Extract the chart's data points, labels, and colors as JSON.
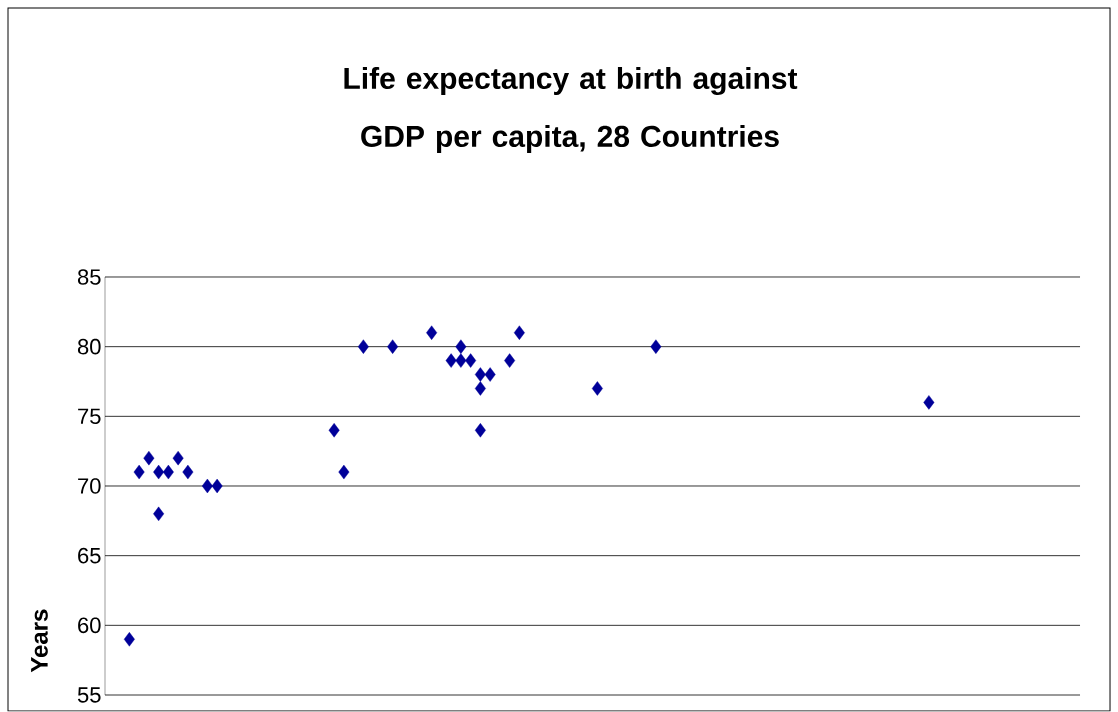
{
  "chart_data": {
    "type": "scatter",
    "title": "Life expectancy at birth against GDP per capita, 28 Countries",
    "ylabel": "Years",
    "categories": [
      null,
      null,
      null,
      null,
      null,
      null,
      null,
      null,
      null,
      null,
      null,
      null,
      null,
      null,
      null,
      null,
      null,
      null,
      null,
      null,
      null,
      null,
      null,
      null,
      null,
      null,
      null,
      null,
      null,
      null,
      null,
      null,
      null,
      null,
      null,
      null,
      null,
      null,
      null,
      null,
      null,
      null,
      null,
      null,
      null,
      null,
      null,
      null,
      null,
      null,
      null,
      null,
      null,
      null,
      null,
      null,
      null,
      null,
      null,
      null,
      null,
      null,
      null,
      null,
      null,
      null,
      null,
      null,
      null,
      null,
      null,
      null,
      null,
      null,
      null,
      null,
      null,
      null,
      null,
      null,
      null,
      null,
      null,
      null,
      null,
      null,
      null,
      null,
      null,
      null,
      null,
      null,
      null,
      null,
      null,
      null,
      null,
      null,
      null,
      null
    ],
    "series": [
      {
        "color": "#000099",
        "values": [
          null,
          null,
          59,
          71,
          72,
          71,
          71,
          72,
          71,
          null,
          70,
          70,
          null,
          null,
          null,
          null,
          null,
          null,
          null,
          null,
          null,
          null,
          null,
          74,
          71,
          null,
          80,
          null,
          null,
          80,
          null,
          null,
          null,
          81,
          null,
          79,
          80,
          79,
          78,
          78,
          null,
          79,
          81,
          null,
          null,
          null,
          null,
          null,
          null,
          null,
          77,
          null,
          null,
          null,
          null,
          null,
          80,
          null,
          null,
          null,
          null,
          null,
          null,
          null,
          null,
          null,
          null,
          null,
          null,
          null,
          null,
          null,
          null,
          null,
          null,
          null,
          null,
          null,
          null,
          null,
          null,
          null,
          null,
          null,
          76,
          null,
          null,
          null,
          null,
          null,
          null,
          null,
          null,
          null,
          null,
          null,
          null,
          null,
          null,
          null
        ]
      },
      {
        "color": "#000099",
        "values": [
          null,
          null,
          null,
          null,
          null,
          68,
          null,
          null,
          null,
          null,
          null,
          null,
          null,
          null,
          null,
          null,
          null,
          null,
          null,
          null,
          null,
          null,
          null,
          null,
          null,
          null,
          null,
          null,
          null,
          null,
          null,
          null,
          null,
          null,
          null,
          null,
          79,
          null,
          74,
          null,
          null,
          null,
          null,
          null,
          null,
          null,
          null,
          null,
          null,
          null,
          null,
          null,
          null,
          null,
          null,
          null,
          null,
          null,
          null,
          null,
          null,
          null,
          null,
          null,
          null,
          null,
          null,
          null,
          null,
          null,
          null,
          null,
          null,
          null,
          null,
          null,
          null,
          null,
          null,
          null,
          null,
          null,
          null,
          null,
          null,
          null,
          null,
          null,
          null,
          null,
          null,
          null,
          null,
          null,
          null,
          null,
          null,
          null,
          null,
          null
        ]
      },
      {
        "color": "#000099",
        "values": [
          null,
          null,
          null,
          null,
          null,
          null,
          null,
          null,
          null,
          null,
          null,
          null,
          null,
          null,
          null,
          null,
          null,
          null,
          null,
          null,
          null,
          null,
          null,
          null,
          null,
          null,
          null,
          null,
          null,
          null,
          null,
          null,
          null,
          null,
          null,
          null,
          null,
          null,
          77,
          null,
          null,
          null,
          null,
          null,
          null,
          null,
          null,
          null,
          null,
          null,
          null,
          null,
          null,
          null,
          null,
          null,
          null,
          null,
          null,
          null,
          null,
          null,
          null,
          null,
          null,
          null,
          null,
          null,
          null,
          null,
          null,
          null,
          null,
          null,
          null,
          null,
          null,
          null,
          null,
          null,
          null,
          null,
          null,
          null,
          null,
          null,
          null,
          null,
          null,
          null,
          null,
          null,
          null,
          null,
          null,
          null,
          null,
          null,
          null,
          null
        ]
      }
    ],
    "marker": "diamond",
    "grid": "y",
    "tick_labels": "y",
    "ylim": [
      55,
      85
    ],
    "yticks": [
      55,
      60,
      65,
      70,
      75,
      80,
      85
    ]
  }
}
